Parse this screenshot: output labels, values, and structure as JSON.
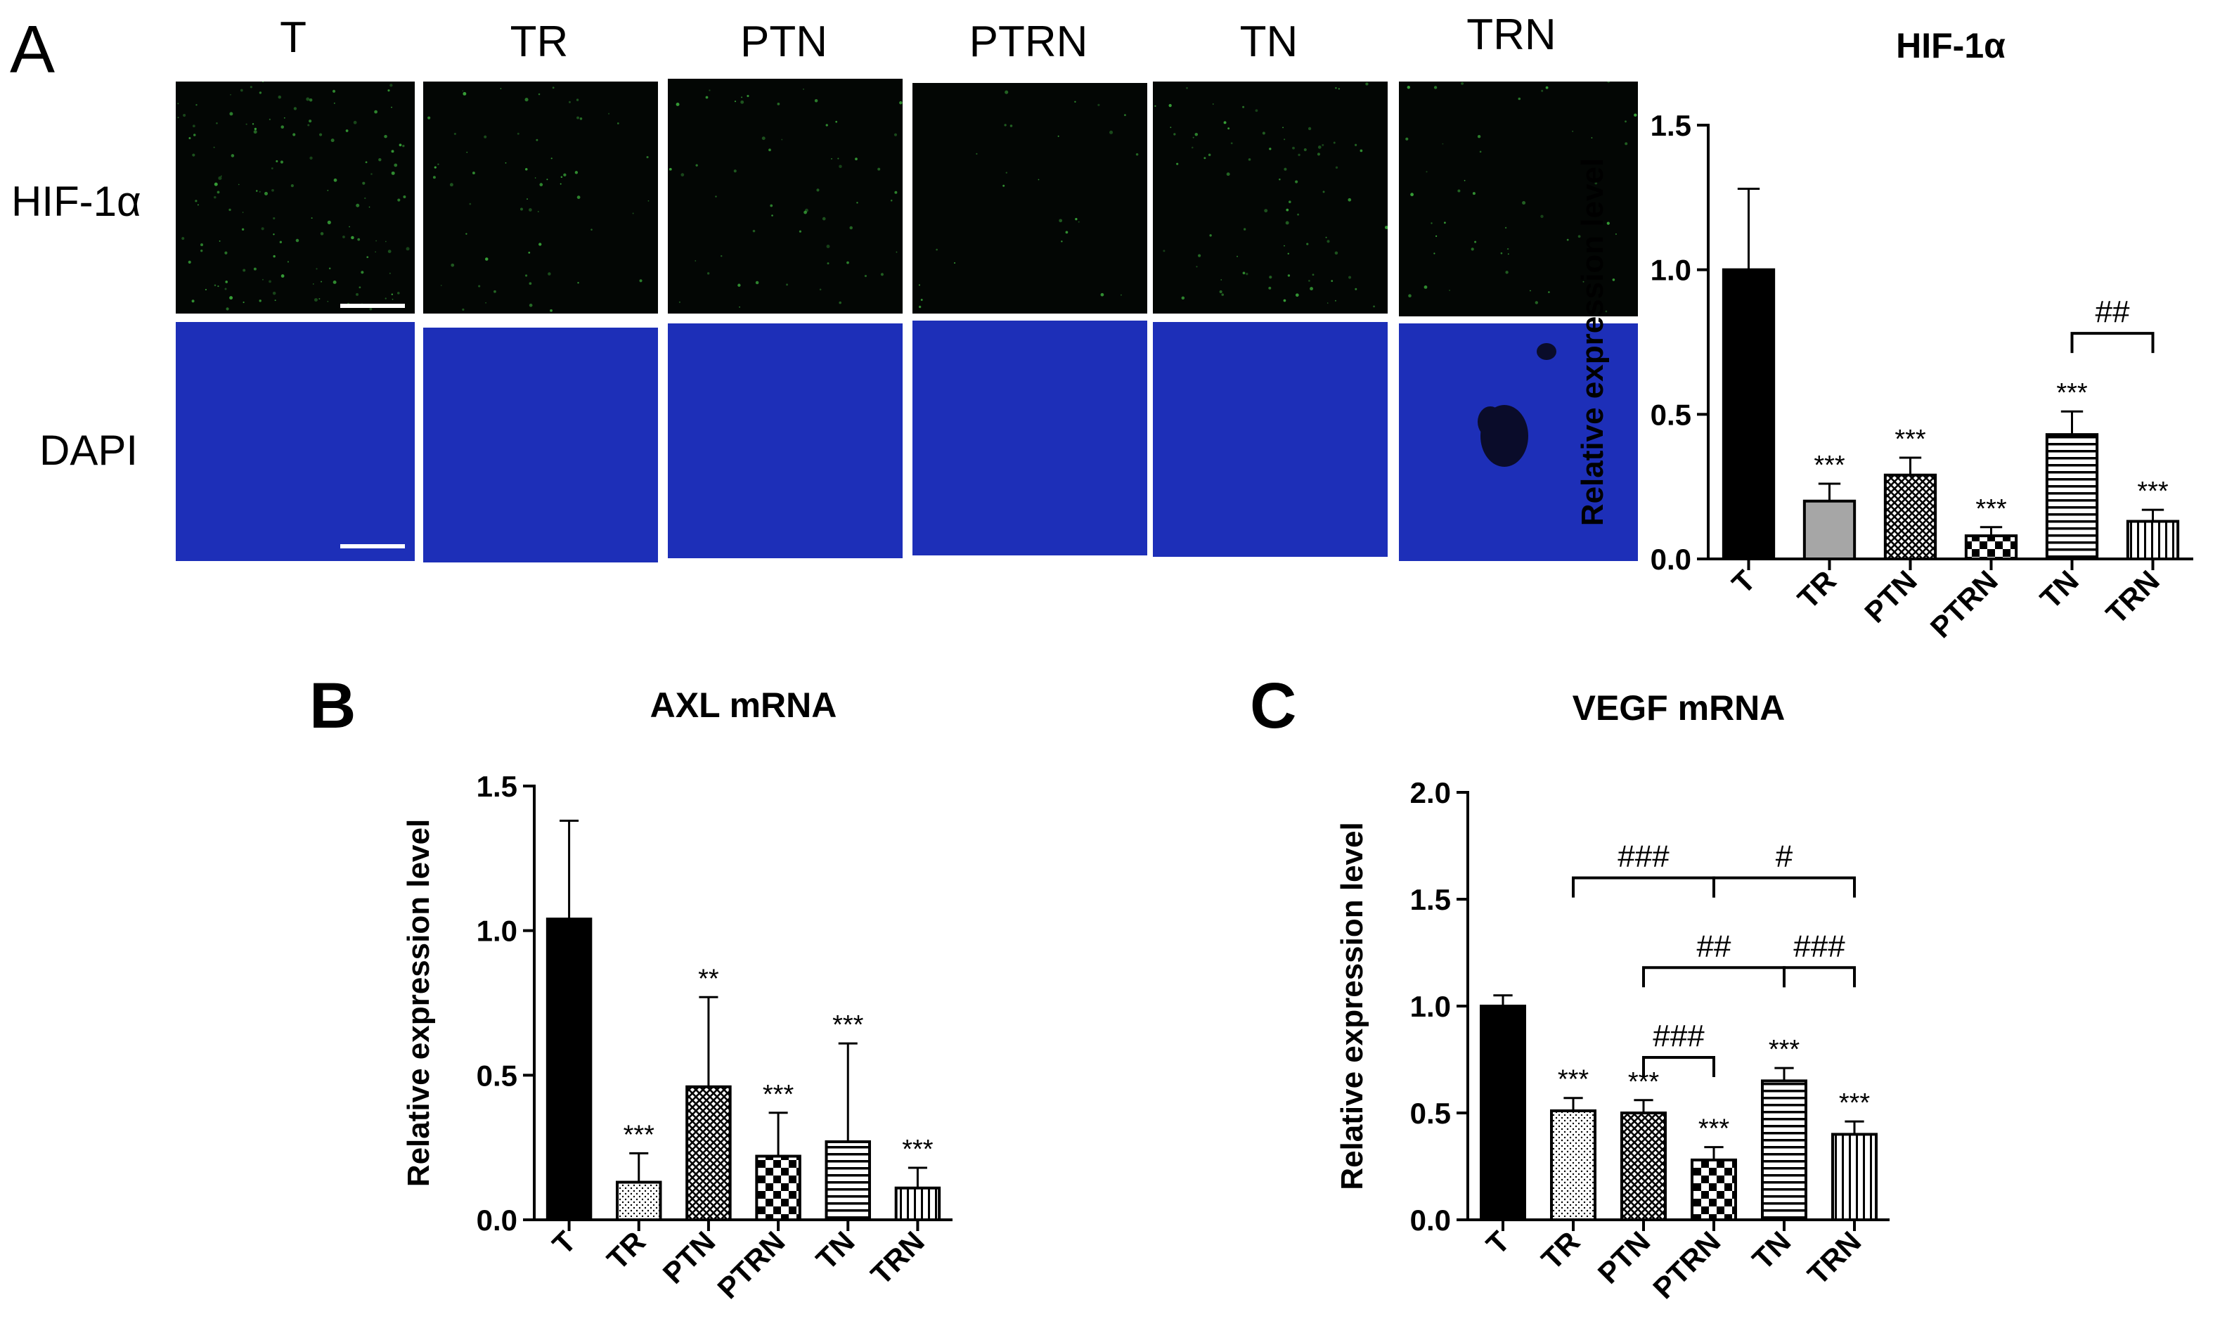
{
  "panel_a": {
    "letter": "A",
    "columns": [
      "T",
      "TR",
      "PTN",
      "PTRN",
      "TN",
      "TRN"
    ],
    "rows": [
      "HIF-1α",
      "DAPI"
    ],
    "colors": {
      "hif_tile": "#030604",
      "hif_dots": "#3aa83a",
      "dapi_tile": "#1d2fb8"
    }
  },
  "panel_b": {
    "letter": "B"
  },
  "panel_c": {
    "letter": "C"
  },
  "chart_data": [
    {
      "id": "hif",
      "type": "bar",
      "title": "HIF-1α",
      "ylabel": "Relative expression level",
      "xlabel": "",
      "categories": [
        "T",
        "TR",
        "PTN",
        "PTRN",
        "TN",
        "TRN"
      ],
      "values": [
        1.0,
        0.2,
        0.29,
        0.08,
        0.43,
        0.13
      ],
      "errors": [
        0.28,
        0.06,
        0.06,
        0.03,
        0.08,
        0.04
      ],
      "patterns": [
        "solid",
        "gray",
        "crosshatch",
        "checker",
        "hlines",
        "vlines"
      ],
      "significance": [
        "",
        "***",
        "***",
        "***",
        "***",
        "***"
      ],
      "ylim": [
        0,
        1.5
      ],
      "yticks": [
        "0.0",
        "0.5",
        "1.0",
        "1.5"
      ],
      "comparisons": [
        {
          "from": 4,
          "to": 5,
          "label": "##"
        }
      ],
      "grid": false
    },
    {
      "id": "axl",
      "type": "bar",
      "title": "AXL mRNA",
      "ylabel": "Relative expression level",
      "xlabel": "",
      "categories": [
        "T",
        "TR",
        "PTN",
        "PTRN",
        "TN",
        "TRN"
      ],
      "values": [
        1.04,
        0.13,
        0.46,
        0.22,
        0.27,
        0.11
      ],
      "errors": [
        0.34,
        0.1,
        0.31,
        0.15,
        0.34,
        0.07
      ],
      "patterns": [
        "solid",
        "dots",
        "crosshatch",
        "checker",
        "hlines",
        "vlines"
      ],
      "significance": [
        "",
        "***",
        "**",
        "***",
        "***",
        "***"
      ],
      "ylim": [
        0,
        1.5
      ],
      "yticks": [
        "0.0",
        "0.5",
        "1.0",
        "1.5"
      ],
      "comparisons": [],
      "grid": false
    },
    {
      "id": "vegf",
      "type": "bar",
      "title": "VEGF mRNA",
      "ylabel": "Relative expression level",
      "xlabel": "",
      "categories": [
        "T",
        "TR",
        "PTN",
        "PTRN",
        "TN",
        "TRN"
      ],
      "values": [
        1.0,
        0.51,
        0.5,
        0.28,
        0.65,
        0.4
      ],
      "errors": [
        0.05,
        0.06,
        0.06,
        0.06,
        0.06,
        0.06
      ],
      "patterns": [
        "solid",
        "dots",
        "crosshatch",
        "checker",
        "hlines",
        "vlines"
      ],
      "significance": [
        "",
        "***",
        "***",
        "***",
        "***",
        "***"
      ],
      "ylim": [
        0,
        2.0
      ],
      "yticks": [
        "0.0",
        "0.5",
        "1.0",
        "1.5",
        "2.0"
      ],
      "comparisons": [
        {
          "from": 1,
          "to": 3,
          "label": "###",
          "y": 1.6
        },
        {
          "from": 3,
          "to": 5,
          "label": "#",
          "y": 1.6
        },
        {
          "from": 2,
          "to": 4,
          "label": "##",
          "y": 1.18
        },
        {
          "from": 4,
          "to": 5,
          "label": "###",
          "y": 1.18
        },
        {
          "from": 2,
          "to": 3,
          "label": "###",
          "y": 0.76
        }
      ],
      "grid": false
    }
  ]
}
